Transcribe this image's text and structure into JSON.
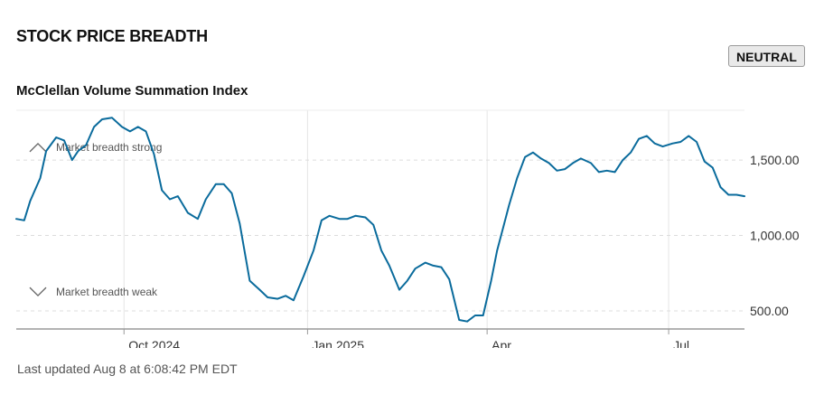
{
  "header": {
    "title": "STOCK PRICE BREADTH",
    "status_badge": "NEUTRAL"
  },
  "footer": {
    "last_updated": "Last updated Aug 8 at 6:08:42 PM EDT"
  },
  "chart_data": {
    "type": "line",
    "title": "McClellan Volume Summation Index",
    "xlabel": "",
    "ylabel": "",
    "ylim": [
      380,
      1830
    ],
    "y_ticks": [
      {
        "value": 500,
        "label": "500.00"
      },
      {
        "value": 1000,
        "label": "1,000.00"
      },
      {
        "value": 1500,
        "label": "1,500.00"
      }
    ],
    "x_ticks": [
      {
        "date": "2024-10-01",
        "label": "Oct 2024"
      },
      {
        "date": "2025-01-01",
        "label": "Jan 2025"
      },
      {
        "date": "2025-04-01",
        "label": "Apr"
      },
      {
        "date": "2025-07-01",
        "label": "Jul"
      }
    ],
    "x_range": [
      "2024-08-08",
      "2025-08-08"
    ],
    "grid": true,
    "annotations": [
      {
        "label": "Market breadth strong",
        "icon": "chevron-up-icon",
        "value": 1585
      },
      {
        "label": "Market breadth weak",
        "icon": "chevron-down-icon",
        "value": 625
      }
    ],
    "line_color": "#0a6b9c",
    "series": [
      {
        "x": [
          "2024-08-08",
          "2024-08-12",
          "2024-08-15",
          "2024-08-20",
          "2024-08-23",
          "2024-08-28",
          "2024-09-01",
          "2024-09-05",
          "2024-09-08",
          "2024-09-12",
          "2024-09-16",
          "2024-09-20",
          "2024-09-25",
          "2024-09-30",
          "2024-10-04",
          "2024-10-08",
          "2024-10-12",
          "2024-10-16",
          "2024-10-20",
          "2024-10-24",
          "2024-10-28",
          "2024-11-02",
          "2024-11-07",
          "2024-11-11",
          "2024-11-16",
          "2024-11-20",
          "2024-11-24",
          "2024-11-28",
          "2024-12-03",
          "2024-12-08",
          "2024-12-12",
          "2024-12-17",
          "2024-12-21",
          "2024-12-25",
          "2024-12-30",
          "2025-01-04",
          "2025-01-08",
          "2025-01-12",
          "2025-01-17",
          "2025-01-21",
          "2025-01-25",
          "2025-01-30",
          "2025-02-03",
          "2025-02-07",
          "2025-02-11",
          "2025-02-16",
          "2025-02-20",
          "2025-02-24",
          "2025-03-01",
          "2025-03-05",
          "2025-03-09",
          "2025-03-13",
          "2025-03-18",
          "2025-03-22",
          "2025-03-26",
          "2025-03-30",
          "2025-04-03",
          "2025-04-06",
          "2025-04-09",
          "2025-04-12",
          "2025-04-16",
          "2025-04-20",
          "2025-04-24",
          "2025-04-28",
          "2025-05-02",
          "2025-05-06",
          "2025-05-10",
          "2025-05-14",
          "2025-05-18",
          "2025-05-23",
          "2025-05-27",
          "2025-05-31",
          "2025-06-04",
          "2025-06-08",
          "2025-06-12",
          "2025-06-16",
          "2025-06-20",
          "2025-06-24",
          "2025-06-28",
          "2025-07-03",
          "2025-07-07",
          "2025-07-11",
          "2025-07-15",
          "2025-07-19",
          "2025-07-23",
          "2025-07-27",
          "2025-07-31",
          "2025-08-04",
          "2025-08-08"
        ],
        "values": [
          1110,
          1100,
          1230,
          1380,
          1560,
          1650,
          1630,
          1500,
          1560,
          1600,
          1720,
          1770,
          1780,
          1720,
          1690,
          1720,
          1690,
          1540,
          1300,
          1240,
          1260,
          1150,
          1110,
          1240,
          1340,
          1340,
          1280,
          1080,
          700,
          640,
          590,
          580,
          600,
          570,
          730,
          900,
          1100,
          1130,
          1110,
          1110,
          1130,
          1120,
          1070,
          900,
          800,
          640,
          700,
          780,
          820,
          800,
          790,
          710,
          440,
          430,
          470,
          470,
          700,
          900,
          1050,
          1200,
          1380,
          1520,
          1550,
          1510,
          1480,
          1430,
          1440,
          1480,
          1510,
          1480,
          1420,
          1430,
          1420,
          1500,
          1550,
          1640,
          1660,
          1610,
          1590,
          1610,
          1620,
          1660,
          1620,
          1490,
          1450,
          1320,
          1270,
          1270,
          1260
        ]
      }
    ]
  }
}
